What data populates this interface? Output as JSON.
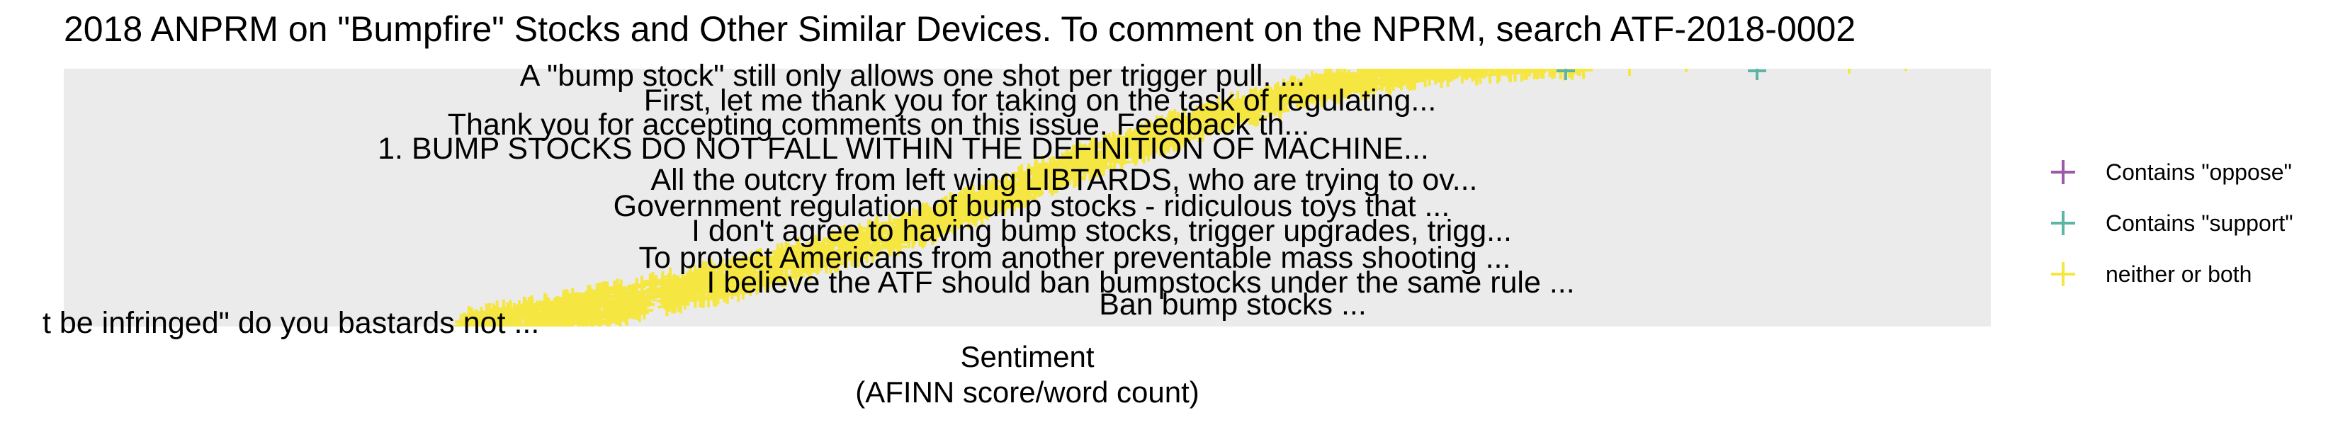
{
  "chart_data": {
    "type": "scatter",
    "title": "2018 ANPRM on \"Bumpfire\" Stocks and Other Similar Devices. To comment on the NPRM, search ATF-2018-0002",
    "xlabel": "Sentiment",
    "xlabel_sub": "(AFINN score/word count)",
    "ylabel": "",
    "grid": false,
    "legend_position": "right",
    "legend": [
      {
        "label": "Contains \"oppose\"",
        "color": "#9b59a8",
        "marker": "plus-icon"
      },
      {
        "label": "Contains \"support\"",
        "color": "#5fb5a5",
        "marker": "plus-icon"
      },
      {
        "label": "neither or both",
        "color": "#f5e642",
        "marker": "plus-icon"
      }
    ],
    "labels": [
      {
        "text": "A \"bump stock\" still only allows one shot per trigger pull. ..."
      },
      {
        "text": "First, let me thank you for taking on the task of regulating..."
      },
      {
        "text": "Thank you for accepting comments on this issue.  Feedback th..."
      },
      {
        "text": "1.  BUMP STOCKS DO NOT FALL WITHIN THE DEFINITION OF MACHINE..."
      },
      {
        "text": "All the outcry from left wing LIBTARDS, who are trying to ov..."
      },
      {
        "text": "Government regulation of bump stocks - ridiculous toys that ..."
      },
      {
        "text": "I don't agree to having bump stocks, trigger upgrades, trigg..."
      },
      {
        "text": "To protect Americans from another preventable mass shooting ..."
      },
      {
        "text": "I believe the ATF should ban bumpstocks under the same rule ..."
      },
      {
        "text": "Ban bump stocks ..."
      },
      {
        "text": "t be infringed\" do you bastards not ..."
      }
    ]
  }
}
